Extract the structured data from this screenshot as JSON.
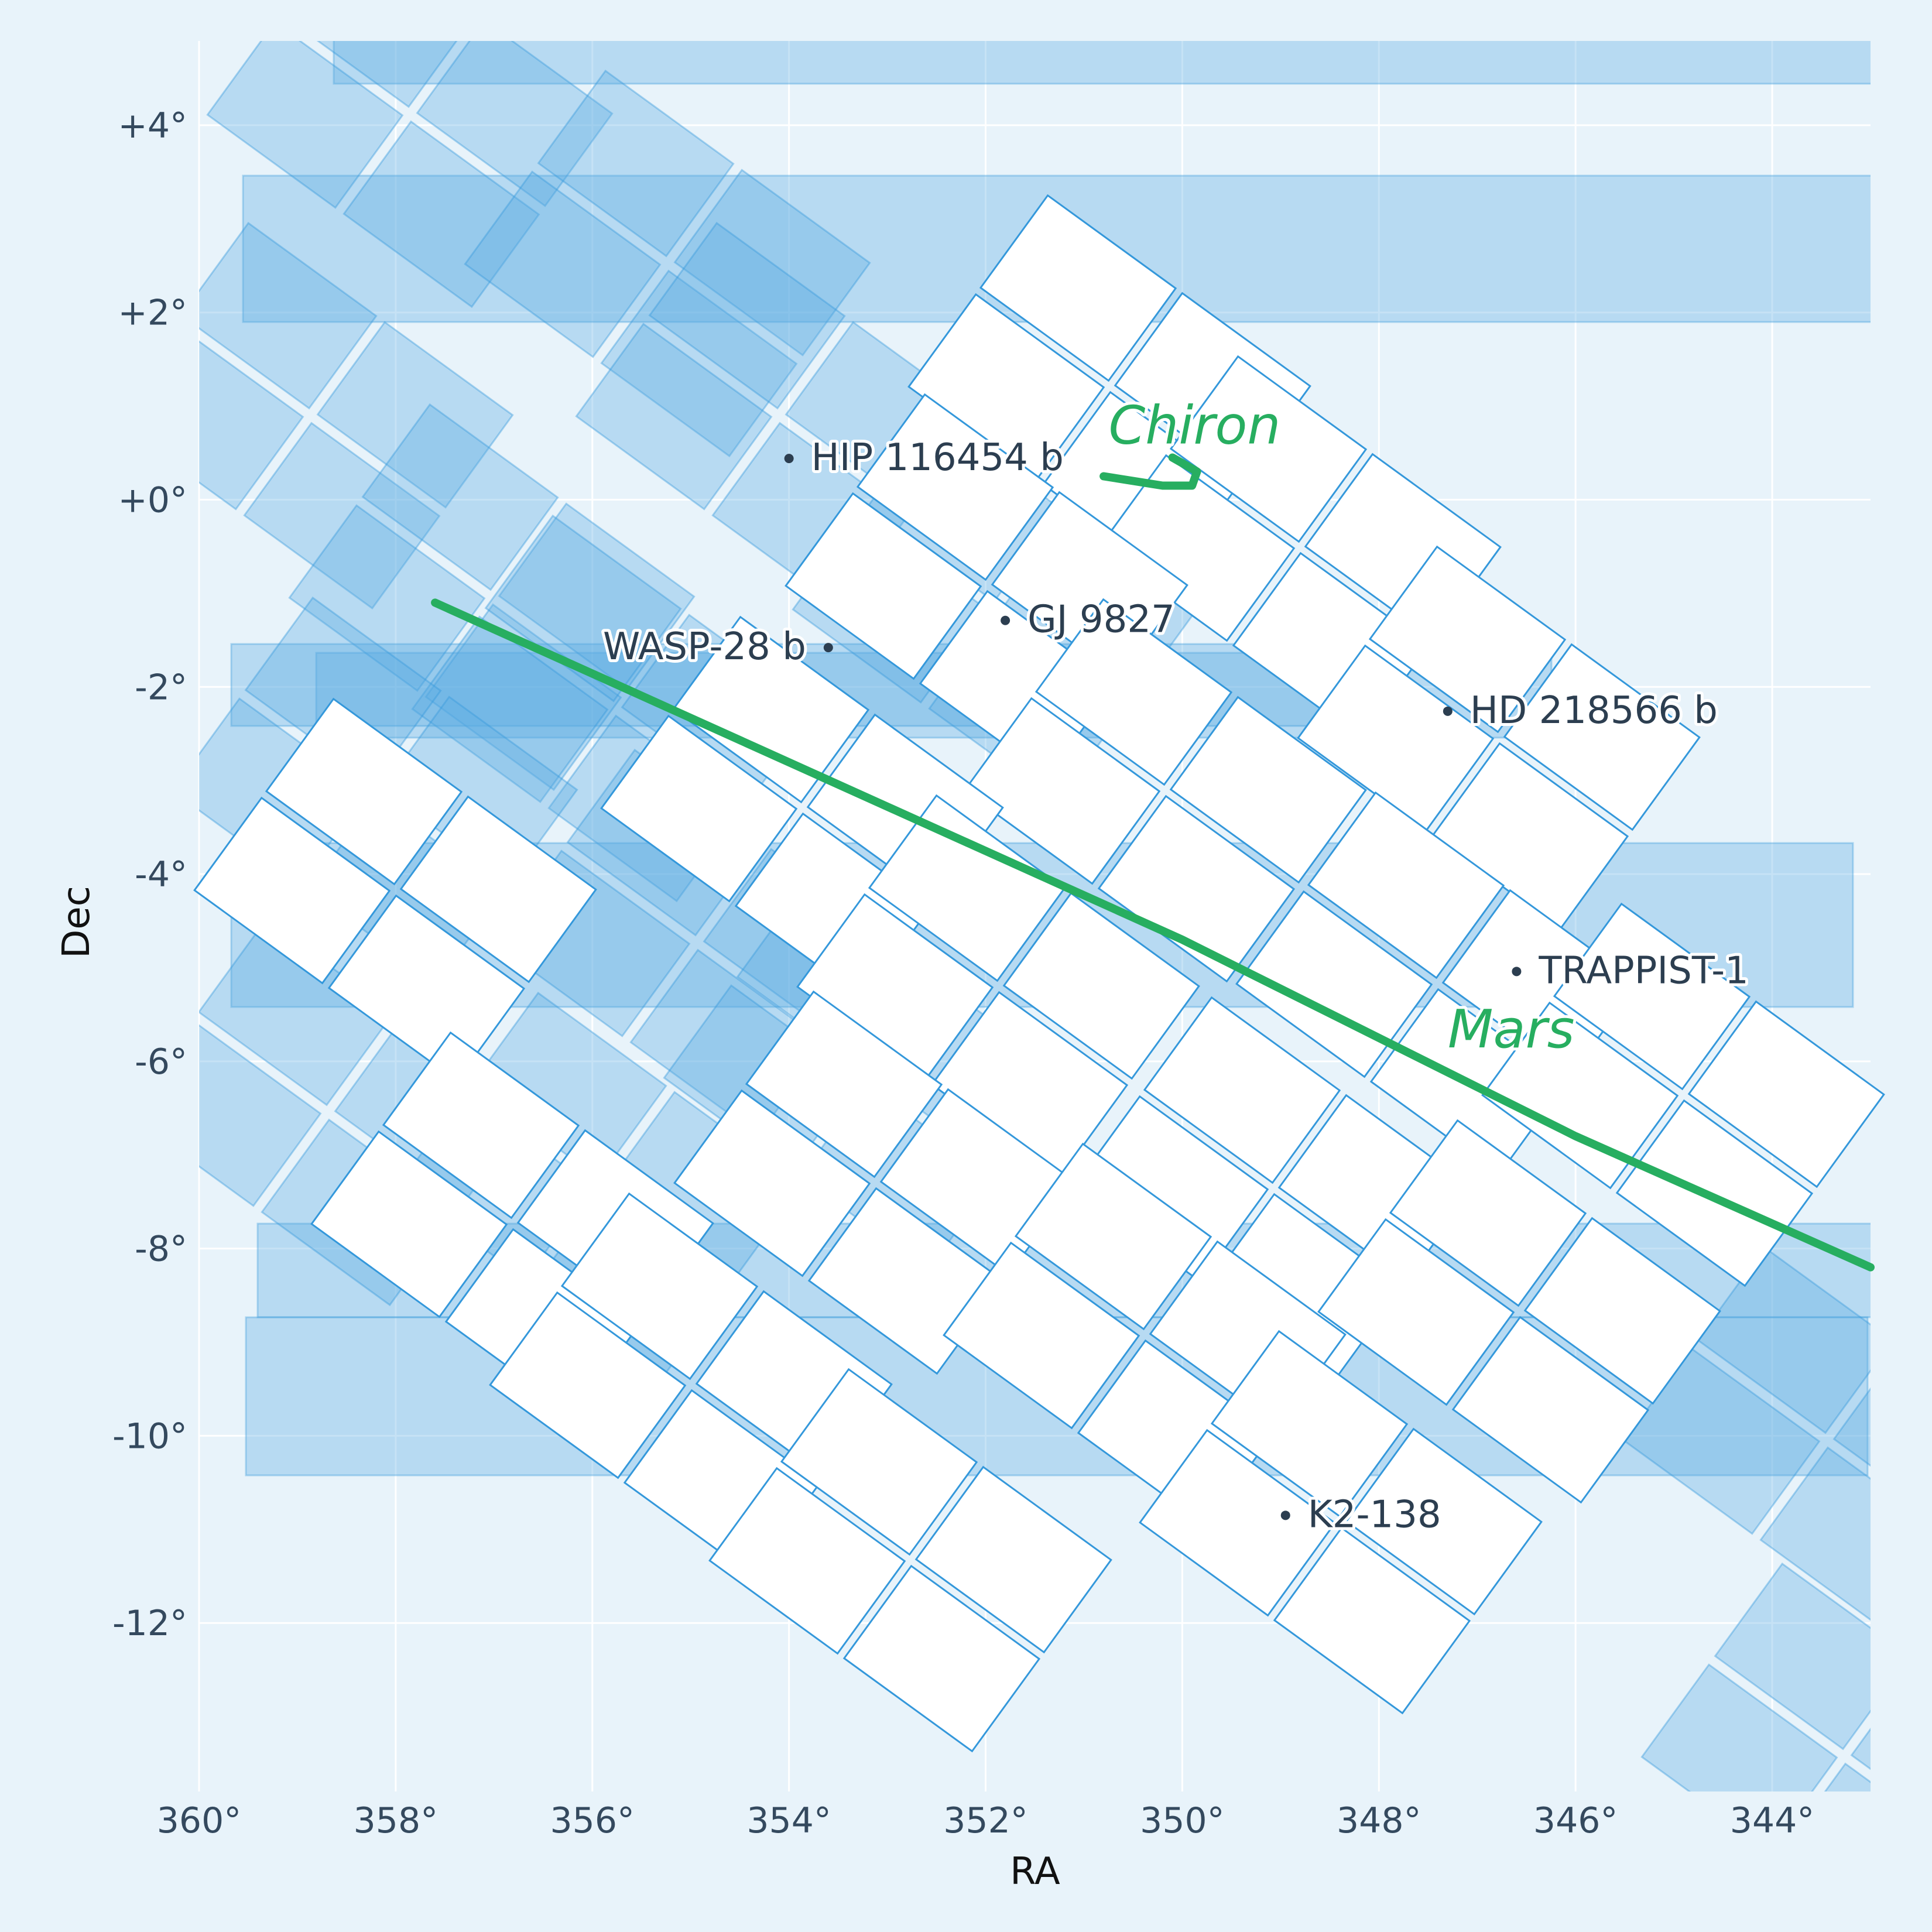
{
  "chart_data": {
    "type": "scatter",
    "xlabel": "RA",
    "ylabel": "Dec",
    "x_inverted": true,
    "xlim": [
      360,
      343
    ],
    "ylim": [
      -13.8,
      4.9
    ],
    "grid": true,
    "x_ticks": [
      {
        "value": 360,
        "label": "360°"
      },
      {
        "value": 358,
        "label": "358°"
      },
      {
        "value": 356,
        "label": "356°"
      },
      {
        "value": 354,
        "label": "354°"
      },
      {
        "value": 352,
        "label": "352°"
      },
      {
        "value": 350,
        "label": "350°"
      },
      {
        "value": 348,
        "label": "348°"
      },
      {
        "value": 346,
        "label": "346°"
      },
      {
        "value": 344,
        "label": "344°"
      }
    ],
    "y_ticks": [
      {
        "value": 4,
        "label": "+4°"
      },
      {
        "value": 2,
        "label": "+2°"
      },
      {
        "value": 0,
        "label": "+0°"
      },
      {
        "value": -2,
        "label": "-2°"
      },
      {
        "value": -4,
        "label": "-4°"
      },
      {
        "value": -6,
        "label": "-6°"
      },
      {
        "value": -8,
        "label": "-8°"
      },
      {
        "value": -10,
        "label": "-10°"
      },
      {
        "value": -12,
        "label": "-12°"
      }
    ],
    "targets": [
      {
        "name": "HIP 116454 b",
        "ra": 354.0,
        "dec": 0.44,
        "label_side": "right"
      },
      {
        "name": "WASP-28 b",
        "ra": 353.6,
        "dec": -1.58,
        "label_side": "left"
      },
      {
        "name": "GJ 9827",
        "ra": 351.8,
        "dec": -1.29,
        "label_side": "right"
      },
      {
        "name": "HD 218566 b",
        "ra": 347.3,
        "dec": -2.26,
        "label_side": "right"
      },
      {
        "name": "TRAPPIST-1",
        "ra": 346.6,
        "dec": -5.04,
        "label_side": "right"
      },
      {
        "name": "K2-138",
        "ra": 348.95,
        "dec": -10.85,
        "label_side": "right"
      }
    ],
    "solar_system_bodies": [
      {
        "name": "Mars",
        "color": "#27ae60",
        "track_ra": [
          357.6,
          350.0,
          346.0,
          343.0
        ],
        "track_dec": [
          -1.1,
          -4.7,
          -6.8,
          -8.2
        ],
        "label_ra": 347.3,
        "label_dec": -5.85
      },
      {
        "name": "Chiron",
        "color": "#27ae60",
        "track_ra": [
          350.8,
          350.2,
          349.9,
          349.85,
          350.1
        ],
        "track_dec": [
          0.25,
          0.15,
          0.15,
          0.3,
          0.45
        ],
        "label_ra": 350.75,
        "label_dec": 0.6
      }
    ],
    "fields": {
      "fill_color": "#5dade2",
      "fill_opacity": 0.35,
      "edge_color": "#3498db",
      "current_fill": "#ffffff"
    }
  }
}
